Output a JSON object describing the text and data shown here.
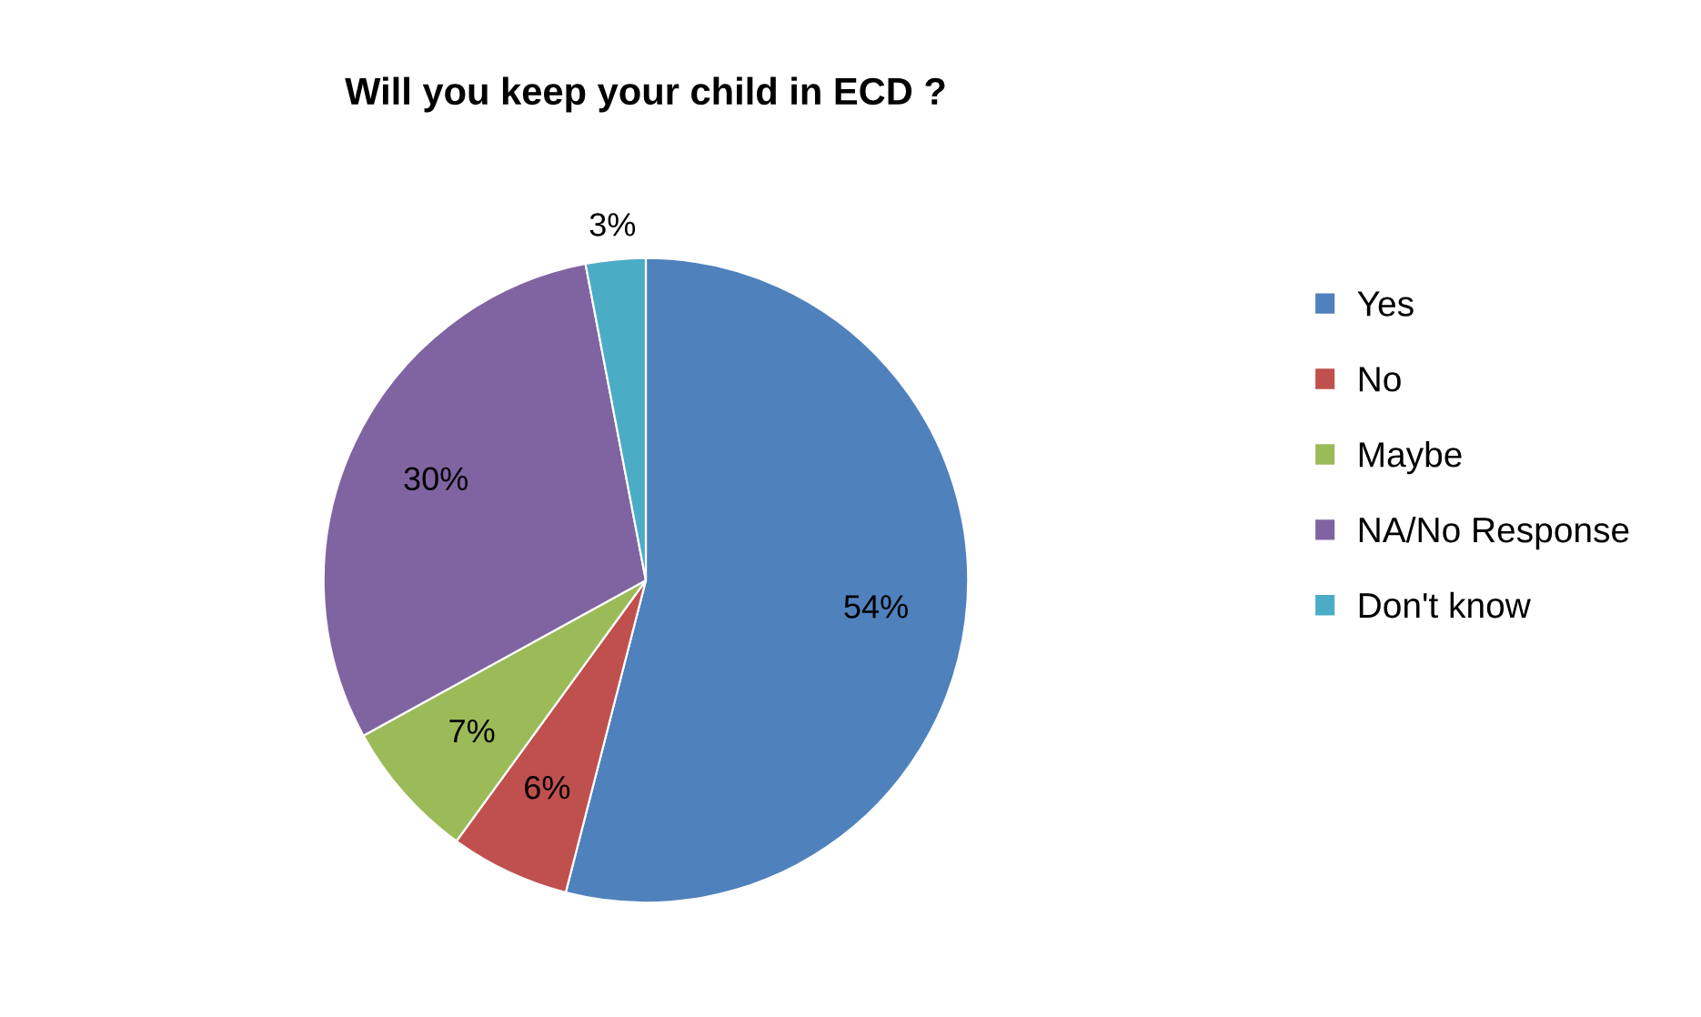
{
  "chart_data": {
    "type": "pie",
    "title": "Will you keep your child in ECD ?",
    "categories": [
      "Yes",
      "No",
      "Maybe",
      "NA/No Response",
      "Don't know"
    ],
    "values": [
      54,
      6,
      7,
      30,
      3
    ],
    "colors": [
      "#4f81bd",
      "#c0504d",
      "#9bbb59",
      "#8064a2",
      "#4bacc6"
    ],
    "value_labels": [
      "54%",
      "6%",
      "7%",
      "30%",
      "3%"
    ],
    "legend": "right"
  }
}
